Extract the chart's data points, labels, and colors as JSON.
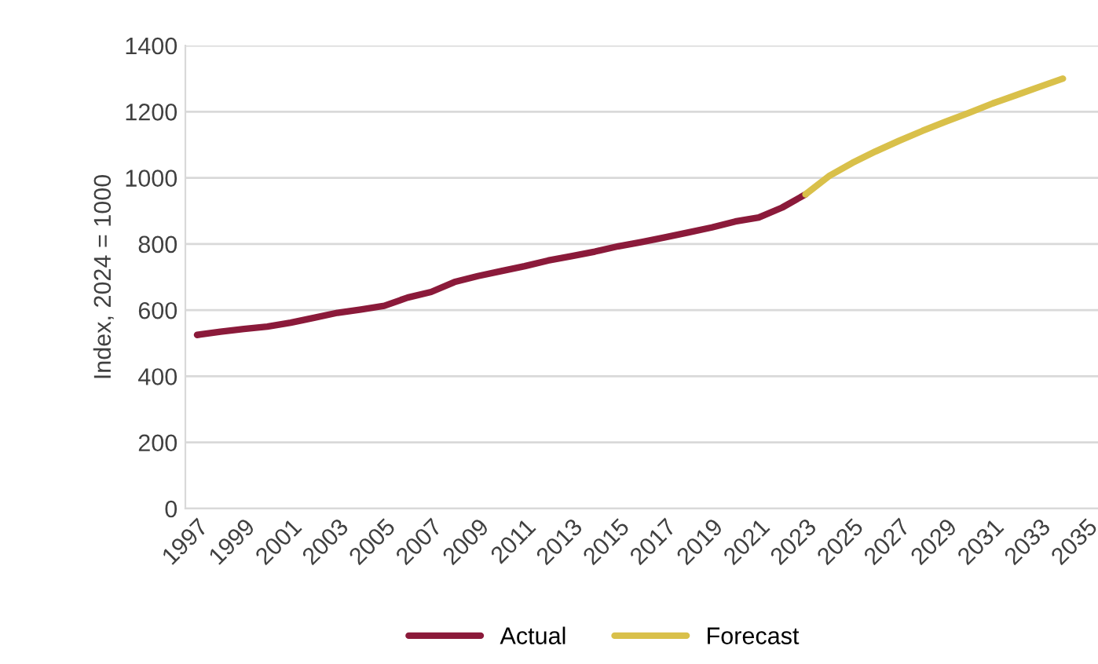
{
  "chart_data": {
    "type": "line",
    "ylabel": "Index, 2024 = 1000",
    "categories": [
      "1997",
      null,
      "1999",
      null,
      "2001",
      null,
      "2003",
      null,
      "2005",
      null,
      "2007",
      null,
      "2009",
      null,
      "2011",
      null,
      "2013",
      null,
      "2015",
      null,
      "2017",
      null,
      "2019",
      null,
      "2021",
      null,
      "2023",
      null,
      "2025",
      null,
      "2027",
      null,
      "2029",
      null,
      "2031",
      null,
      "2033",
      null,
      "2035"
    ],
    "series": [
      {
        "name": "Actual",
        "color": "#8b1a3a",
        "values": [
          525,
          535,
          543,
          550,
          562,
          577,
          592,
          602,
          613,
          638,
          655,
          685,
          703,
          718,
          733,
          750,
          763,
          777,
          793,
          806,
          820,
          835,
          850,
          868,
          880,
          910,
          950,
          null,
          null,
          null,
          null,
          null,
          null,
          null,
          null,
          null,
          null,
          null,
          null
        ]
      },
      {
        "name": "Forecast",
        "color": "#d9c04a",
        "values": [
          null,
          null,
          null,
          null,
          null,
          null,
          null,
          null,
          null,
          null,
          null,
          null,
          null,
          null,
          null,
          null,
          null,
          null,
          null,
          null,
          null,
          null,
          null,
          null,
          null,
          null,
          950,
          1005,
          1045,
          1080,
          1112,
          1142,
          1170,
          1197,
          1225,
          1250,
          1275,
          1300,
          null
        ]
      }
    ],
    "ylim": [
      0,
      1400
    ],
    "yticks": [
      0,
      200,
      400,
      600,
      800,
      1000,
      1200,
      1400
    ],
    "grid": "y",
    "legend": "bottom"
  }
}
